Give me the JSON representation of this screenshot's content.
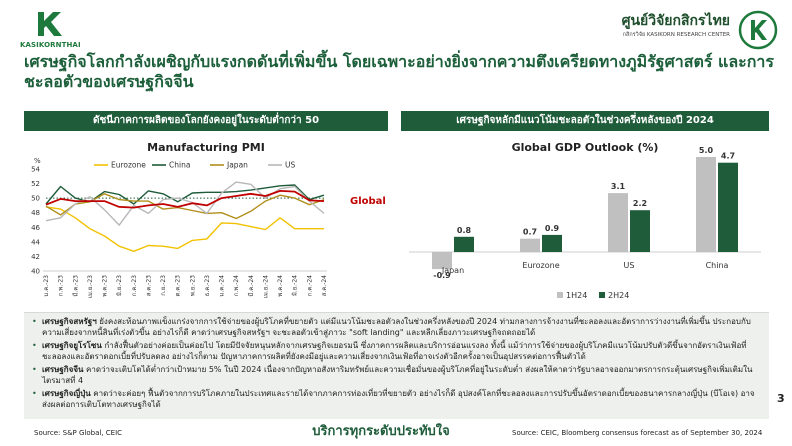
{
  "header": {
    "left_logo_text": "KASIKORNTHAI",
    "right_logo_title": "ศูนย์วิจัยกสิกรไทย",
    "right_logo_subtitle": "กสิกรวิจัย KASIKORN RESEARCH CENTER",
    "brand_green": "#1e5c3a"
  },
  "headline": "เศรษฐกิจโลกกำลังเผชิญกับแรงกดดันที่เพิ่มขึ้น โดยเฉพาะอย่างยิ่งจากความตึงเครียดทางภูมิรัฐศาสตร์ และการชะลอตัวของเศรษฐกิจจีน",
  "left_panel": {
    "bar_title": "ดัชนีภาคการผลิตของโลกยังคงอยู่ในระดับต่ำกว่า 50"
  },
  "right_panel": {
    "bar_title": "เศรษฐกิจหลักมีแนวโน้มชะลอตัวในช่วงครึ่งหลังของปี 2024"
  },
  "chart_data": [
    {
      "type": "line",
      "title": "Manufacturing PMI",
      "ylabel": "%",
      "ylim": [
        40,
        54
      ],
      "yticks": [
        40,
        42,
        44,
        46,
        48,
        50,
        52,
        54
      ],
      "grid": false,
      "legend": "top",
      "categories": [
        "ม.ค.-23",
        "ก.พ.-23",
        "มี.ค.-23",
        "เม.ย.-23",
        "พ.ค.-23",
        "มิ.ย.-23",
        "ก.ค.-23",
        "ส.ค.-23",
        "ก.ย.-23",
        "ต.ค.-23",
        "พ.ย.-23",
        "ธ.ค.-23",
        "ม.ค.-24",
        "ก.พ.-24",
        "มี.ค.-24",
        "เม.ย.-24",
        "พ.ค.-24",
        "มิ.ย.-24",
        "ก.ค.-24",
        "ส.ค.-24"
      ],
      "series": [
        {
          "name": "Eurozone",
          "color": "#f2c200",
          "values": [
            48.8,
            48.5,
            47.3,
            45.8,
            44.8,
            43.4,
            42.7,
            43.5,
            43.4,
            43.1,
            44.2,
            44.4,
            46.6,
            46.5,
            46.1,
            45.7,
            47.3,
            45.8,
            45.8,
            45.8
          ]
        },
        {
          "name": "China",
          "color": "#1e5c3a",
          "values": [
            49.2,
            51.6,
            50.0,
            49.5,
            50.9,
            50.5,
            49.2,
            51.0,
            50.6,
            49.5,
            50.7,
            50.8,
            50.8,
            50.9,
            51.1,
            51.4,
            51.7,
            51.8,
            49.8,
            50.4
          ]
        },
        {
          "name": "Japan",
          "color": "#b08f1c",
          "values": [
            48.9,
            47.7,
            49.2,
            49.5,
            50.6,
            49.8,
            49.6,
            49.6,
            48.5,
            48.7,
            48.3,
            47.9,
            48.0,
            47.2,
            48.2,
            49.6,
            50.4,
            50.0,
            49.1,
            49.8
          ]
        },
        {
          "name": "US",
          "color": "#b8b8b8",
          "values": [
            46.9,
            47.3,
            49.2,
            50.2,
            48.4,
            46.3,
            49.0,
            47.9,
            49.8,
            50.0,
            49.4,
            47.9,
            50.7,
            52.2,
            51.9,
            50.0,
            51.3,
            51.6,
            49.6,
            47.9
          ]
        },
        {
          "name": "Global",
          "color": "#c00000",
          "values": [
            49.1,
            49.9,
            49.6,
            49.6,
            49.6,
            48.8,
            48.7,
            49.0,
            49.2,
            48.8,
            49.3,
            49.0,
            50.0,
            50.3,
            50.6,
            50.3,
            51.0,
            50.9,
            49.7,
            49.6
          ]
        }
      ],
      "reference_line": {
        "value": 50,
        "color": "#1e5c3a",
        "style": "dotted"
      },
      "annotation": "Global"
    },
    {
      "type": "bar",
      "title": "Global GDP Outlook (%)",
      "categories": [
        "Japan",
        "Eurozone",
        "US",
        "China"
      ],
      "ylim": [
        -1,
        5
      ],
      "grid": false,
      "legend": "bottom-right",
      "series": [
        {
          "name": "1H24",
          "color": "#c0c0c0",
          "values": [
            -0.9,
            0.7,
            3.1,
            5.0
          ]
        },
        {
          "name": "2H24",
          "color": "#1e5c3a",
          "values": [
            0.8,
            0.9,
            2.2,
            4.7
          ]
        }
      ]
    }
  ],
  "notes": [
    {
      "lead": "เศรษฐกิจสหรัฐฯ",
      "text": " ยังคงสะท้อนภาพแข็งแกร่งจากการใช้จ่ายของผู้บริโภคที่ขยายตัว แต่มีแนวโน้มชะลอตัวลงในช่วงครึ่งหลังของปี 2024 ท่ามกลางการจ้างงานที่ชะลอลงและอัตราการว่างงานที่เพิ่มขึ้น ประกอบกับความเสี่ยงจากหนี้สินที่เร่งตัวขึ้น อย่างไรก็ดี คาดว่าเศรษฐกิจสหรัฐฯ จะชะลอตัวเข้าสู่ภาวะ \"soft landing\" และหลีกเลี่ยงภาวะเศรษฐกิจถดถอยได้"
    },
    {
      "lead": "เศรษฐกิจยูโรโซน",
      "text": " กำลังฟื้นตัวอย่างค่อยเป็นค่อยไป โดยมีปัจจัยหนุนหลักจากเศรษฐกิจเยอรมนี ซึ่งภาคการผลิตและบริการอ่อนแรงลง ทั้งนี้ แม้ว่าการใช้จ่ายของผู้บริโภคมีแนวโน้มปรับตัวดีขึ้นจากอัตราเงินเฟ้อที่ชะลอลงและอัตราดอกเบี้ยที่ปรับลดลง อย่างไรก็ตาม ปัญหาภาคการผลิตที่ยังคงมีอยู่และความเสี่ยงจากเงินเฟ้อที่อาจเร่งตัวอีกครั้งอาจเป็นอุปสรรคต่อการฟื้นตัวได้"
    },
    {
      "lead": "เศรษฐกิจจีน",
      "text": " คาดว่าจะเติบโตได้ต่ำกว่าเป้าหมาย 5% ในปี 2024 เนื่องจากปัญหาอสังหาริมทรัพย์และความเชื่อมั่นของผู้บริโภคที่อยู่ในระดับต่ำ ส่งผลให้คาดว่ารัฐบาลอาจออกมาตรการกระตุ้นเศรษฐกิจเพิ่มเติมในไตรมาสที่ 4"
    },
    {
      "lead": "เศรษฐกิจญี่ปุ่น",
      "text": " คาดว่าจะค่อยๆ ฟื้นตัวจากการบริโภคภายในประเทศและรายได้จากภาคการท่องเที่ยวที่ขยายตัว อย่างไรก็ดี อุปสงค์โลกที่ชะลอลงและการปรับขึ้นอัตราดอกเบี้ยของธนาคารกลางญี่ปุ่น (บีโอเจ) อาจส่งผลต่อการเติบโตทางเศรษฐกิจได้"
    }
  ],
  "page_number": "3",
  "footer": {
    "source_left": "Source: S&P Global, CEIC",
    "slogan": "บริการทุกระดับประทับใจ",
    "source_right": "Source: CEIC, Bloomberg consensus forecast as of September 30, 2024"
  }
}
